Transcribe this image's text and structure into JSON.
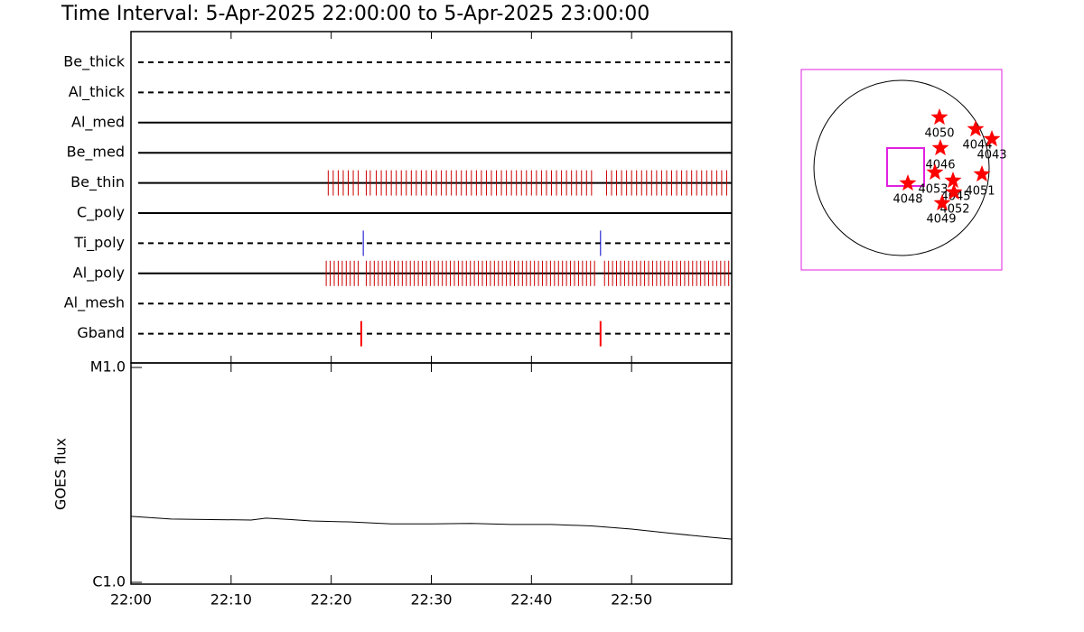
{
  "title": "Time Interval:  5-Apr-2025 22:00:00 to  5-Apr-2025 23:00:00",
  "chart_data": [
    {
      "type": "timeline",
      "xlim": [
        0,
        60
      ],
      "xticks": [
        {
          "value": 0,
          "label": "22:00"
        },
        {
          "value": 10,
          "label": "22:10"
        },
        {
          "value": 20,
          "label": "22:20"
        },
        {
          "value": 30,
          "label": "22:30"
        },
        {
          "value": 40,
          "label": "22:40"
        },
        {
          "value": 50,
          "label": "22:50"
        },
        {
          "value": 60,
          "label": "23:00"
        }
      ],
      "series": [
        {
          "name": "Be_thick",
          "dashed": true,
          "color": "#ff0000",
          "x": []
        },
        {
          "name": "Al_thick",
          "dashed": true,
          "color": "#ff0000",
          "x": []
        },
        {
          "name": "Al_med",
          "dashed": false,
          "color": "#ff0000",
          "x": []
        },
        {
          "name": "Be_med",
          "dashed": false,
          "color": "#ff0000",
          "x": []
        },
        {
          "name": "Be_thin",
          "dashed": false,
          "color": "#cc0000",
          "x": [
            19.7,
            20.2,
            20.7,
            21.2,
            21.7,
            22.2,
            22.7,
            23.5,
            23.9,
            24.5,
            25.0,
            25.5,
            26.0,
            26.5,
            27.0,
            27.5,
            28.0,
            28.5,
            29.0,
            29.5,
            30.0,
            30.5,
            31.0,
            31.5,
            32.0,
            32.5,
            33.0,
            33.5,
            34.0,
            34.5,
            35.0,
            35.5,
            36.0,
            36.5,
            37.0,
            37.5,
            38.0,
            38.5,
            39.0,
            39.5,
            40.0,
            40.5,
            41.0,
            41.5,
            42.0,
            42.5,
            43.0,
            43.5,
            44.0,
            44.5,
            45.0,
            45.5,
            46.0,
            47.5,
            48.0,
            48.5,
            49.0,
            49.5,
            50.0,
            50.5,
            51.0,
            51.5,
            52.0,
            52.5,
            53.0,
            53.5,
            54.0,
            54.5,
            55.0,
            55.5,
            56.0,
            56.5,
            57.0,
            57.5,
            58.0,
            58.5,
            59.0,
            59.5
          ]
        },
        {
          "name": "C_poly",
          "dashed": false,
          "color": "#ff0000",
          "x": []
        },
        {
          "name": "Ti_poly",
          "dashed": true,
          "color": "#0000cc",
          "x": [
            23.2,
            46.9
          ]
        },
        {
          "name": "Al_poly",
          "dashed": false,
          "color": "#cc0000",
          "x": [
            19.5,
            19.9,
            20.3,
            20.7,
            21.1,
            21.5,
            21.9,
            22.3,
            22.7,
            23.5,
            23.9,
            24.3,
            24.7,
            25.1,
            25.5,
            25.9,
            26.3,
            26.7,
            27.1,
            27.5,
            27.9,
            28.3,
            28.7,
            29.1,
            29.5,
            29.9,
            30.3,
            30.7,
            31.1,
            31.5,
            31.9,
            32.3,
            32.7,
            33.1,
            33.5,
            33.9,
            34.3,
            34.7,
            35.1,
            35.5,
            35.9,
            36.3,
            36.7,
            37.1,
            37.5,
            37.9,
            38.3,
            38.7,
            39.1,
            39.5,
            39.9,
            40.3,
            40.7,
            41.1,
            41.5,
            41.9,
            42.3,
            42.7,
            43.1,
            43.5,
            43.9,
            44.3,
            44.7,
            45.1,
            45.5,
            45.9,
            46.3,
            47.3,
            47.7,
            48.1,
            48.5,
            48.9,
            49.3,
            49.7,
            50.1,
            50.5,
            50.9,
            51.3,
            51.7,
            52.1,
            52.5,
            52.9,
            53.3,
            53.7,
            54.1,
            54.5,
            54.9,
            55.3,
            55.7,
            56.1,
            56.5,
            56.9,
            57.3,
            57.7,
            58.1,
            58.5,
            58.9,
            59.3,
            59.7
          ]
        },
        {
          "name": "Al_mesh",
          "dashed": true,
          "color": "#ff0000",
          "x": []
        },
        {
          "name": "Gband",
          "dashed": true,
          "color": "#ff0000",
          "x": [
            23.0,
            46.9
          ]
        }
      ]
    },
    {
      "type": "line",
      "ylabel": "GOES flux",
      "log": true,
      "xlim": [
        0,
        60
      ],
      "xticks": [
        0,
        10,
        20,
        30,
        40,
        50,
        60
      ],
      "ylim": [
        1e-06,
        1e-05
      ],
      "yticks": [
        {
          "value": 1e-06,
          "label": "C1.0"
        },
        {
          "value": 1e-05,
          "label": "M1.0"
        }
      ],
      "color": "#000000",
      "x": [
        0,
        4,
        8,
        12,
        13.5,
        16,
        18,
        22,
        26,
        30,
        34,
        38,
        42,
        46,
        50,
        54,
        58,
        60
      ],
      "values": [
        2.03e-06,
        1.97e-06,
        1.96e-06,
        1.95e-06,
        1.99e-06,
        1.96e-06,
        1.93e-06,
        1.91e-06,
        1.87e-06,
        1.87e-06,
        1.88e-06,
        1.86e-06,
        1.86e-06,
        1.83e-06,
        1.77e-06,
        1.69e-06,
        1.62e-06,
        1.59e-06
      ]
    }
  ],
  "disk_map": {
    "regions": [
      "4050",
      "4044",
      "4043",
      "4046",
      "4053",
      "4045",
      "4051",
      "4048",
      "4052",
      "4049"
    ]
  }
}
